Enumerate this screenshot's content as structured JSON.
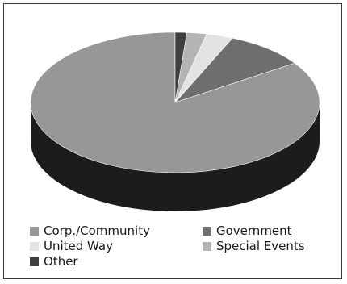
{
  "chart_data": {
    "type": "pie",
    "title": "",
    "slices": [
      {
        "label": "Corp./Community",
        "value": 84.5,
        "color": "#979797"
      },
      {
        "label": "Government",
        "value": 9.0,
        "color": "#6e6e6e"
      },
      {
        "label": "United Way",
        "value": 3.0,
        "color": "#e3e3e3"
      },
      {
        "label": "Special Events",
        "value": 2.2,
        "color": "#b4b4b4"
      },
      {
        "label": "Other",
        "value": 1.3,
        "color": "#3f3f3f"
      }
    ],
    "style": "3d-tilted",
    "side_color": "#1c1c1c",
    "legend_position": "bottom"
  }
}
